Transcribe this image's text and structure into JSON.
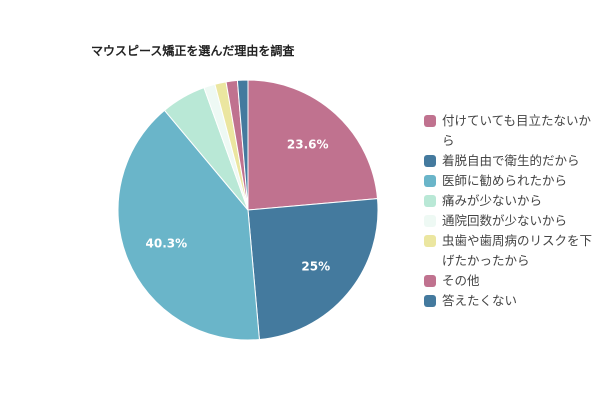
{
  "chart_data": {
    "type": "pie",
    "title": "マウスピース矯正を選んだ理由を調査",
    "categories": [
      "付けていても目立たないから",
      "着脱自由で衛生的だから",
      "医師に勧められたから",
      "痛みが少ないから",
      "通院回数が少ないから",
      "虫歯や歯周病のリスクを下げたかったから",
      "その他",
      "答えたくない"
    ],
    "values": [
      23.6,
      25,
      40.3,
      5.6,
      1.4,
      1.4,
      1.4,
      1.3
    ],
    "value_labels": [
      "23.6%",
      "25%",
      "40.3%",
      null,
      null,
      null,
      null,
      null
    ],
    "colors": [
      "#c0728f",
      "#447a9e",
      "#6ab5c9",
      "#b9e8d6",
      "#eef9f4",
      "#ebe6a0",
      "#c0728f",
      "#447a9e"
    ],
    "legend": "right"
  }
}
